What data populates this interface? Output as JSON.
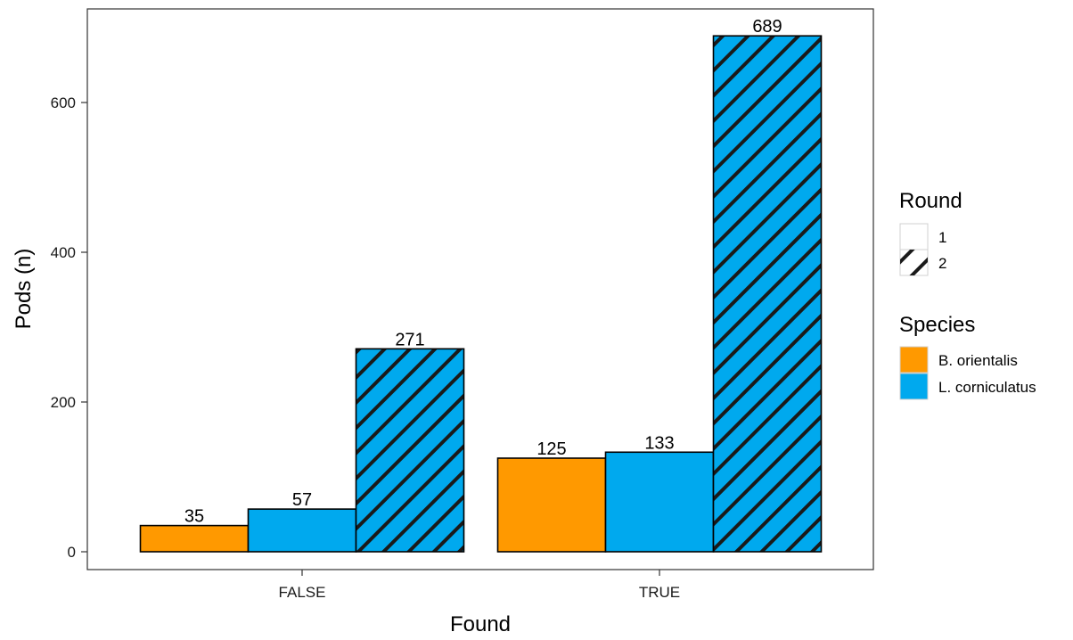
{
  "chart_data": {
    "type": "bar",
    "xlabel": "Found",
    "ylabel": "Pods (n)",
    "ylim": [
      0,
      700
    ],
    "yticks": [
      0,
      200,
      400,
      600
    ],
    "categories": [
      "FALSE",
      "TRUE"
    ],
    "series": [
      {
        "species": "B. orientalis",
        "round": "1",
        "values": [
          35,
          125
        ]
      },
      {
        "species": "L. corniculatus",
        "round": "1",
        "values": [
          57,
          133
        ]
      },
      {
        "species": "L. corniculatus",
        "round": "2",
        "values": [
          271,
          689
        ]
      }
    ],
    "grid": false,
    "legend_position": "right",
    "legend": {
      "round": {
        "title": "Round",
        "items": [
          "1",
          "2"
        ]
      },
      "species": {
        "title": "Species",
        "items": [
          {
            "label": "B. orientalis",
            "color": "#FF9900"
          },
          {
            "label": "L. corniculatus",
            "color": "#00A9EE"
          }
        ]
      }
    }
  }
}
